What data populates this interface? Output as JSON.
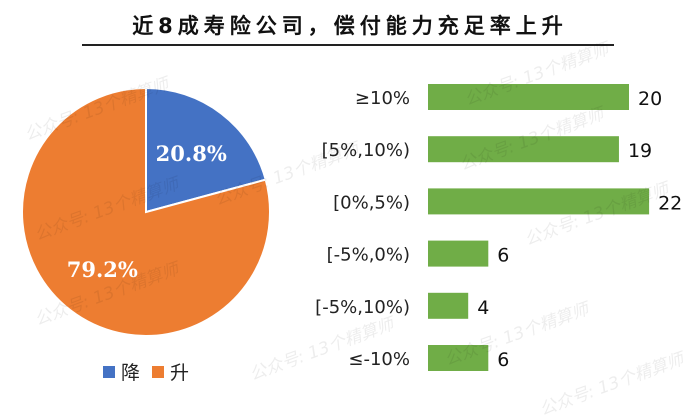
{
  "title": "近8成寿险公司，偿付能力充足率上升",
  "watermark": "公众号: 13个精算师",
  "colors": {
    "decrease": "#4472C4",
    "increase": "#ED7D31",
    "bar": "#70AD47"
  },
  "chart_data": [
    {
      "type": "pie",
      "slices": [
        {
          "name": "降",
          "value": 20.8,
          "label": "20.8%",
          "color": "#4472C4"
        },
        {
          "name": "升",
          "value": 79.2,
          "label": "79.2%",
          "color": "#ED7D31"
        }
      ],
      "legend": [
        "降",
        "升"
      ],
      "legend_position": "bottom"
    },
    {
      "type": "bar",
      "orientation": "horizontal",
      "categories": [
        "≥10%",
        "[5%,10%)",
        "[0%,5%)",
        "[-5%,0%)",
        "[-5%,10%)",
        "≤-10%"
      ],
      "values": [
        20,
        19,
        22,
        6,
        4,
        6
      ],
      "data_labels": [
        "20",
        "19",
        "22",
        "6",
        "4",
        "6"
      ],
      "color": "#70AD47",
      "xlim": [
        0,
        23
      ]
    }
  ]
}
